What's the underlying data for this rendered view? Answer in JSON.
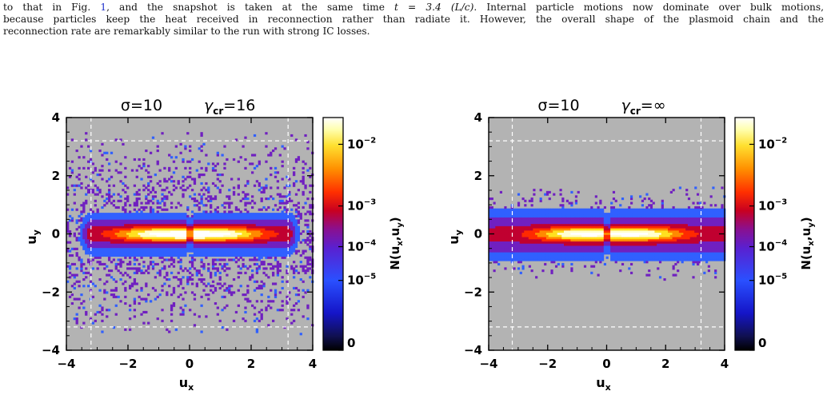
{
  "paragraph": {
    "line1_a": "to that in Fig. ",
    "line1_ref": "1",
    "line1_b": ", and the snapshot is taken at the same time ",
    "line1_math": "t = 3.4 (L/c)",
    "line1_c": ". Internal particle motions now dominate over bulk motions,",
    "line2": "because particles keep the heat received in reconnection rather than radiate it. However, the overall shape of the plasmoid chain and the",
    "line3": "reconnection rate are remarkably similar to the run with strong IC losses."
  },
  "figure": {
    "panels": [
      {
        "title_sigma": "σ=10",
        "title_gamma": "γ",
        "title_gamma_sub": "cr",
        "title_gamma_val": "=16",
        "xlabel": "u",
        "xlabel_sub": "x",
        "ylabel": "u",
        "ylabel_sub": "y",
        "xticks": [
          "−4",
          "−2",
          "0",
          "2",
          "4"
        ],
        "yticks": [
          "4",
          "2",
          "0",
          "−2",
          "−4"
        ],
        "colorbar_label": "N(u",
        "colorbar_label_sub1": "x",
        "colorbar_label_mid": ",u",
        "colorbar_label_sub2": "y",
        "colorbar_label_end": ")",
        "colorbar_ticks": [
          "10",
          "10",
          "10",
          "10",
          "0"
        ],
        "colorbar_tick_exps": [
          "−2",
          "−3",
          "−4",
          "−5",
          ""
        ]
      },
      {
        "title_sigma": "σ=10",
        "title_gamma": "γ",
        "title_gamma_sub": "cr",
        "title_gamma_val": "=∞",
        "xlabel": "u",
        "xlabel_sub": "x",
        "ylabel": "u",
        "ylabel_sub": "y",
        "xticks": [
          "−4",
          "−2",
          "0",
          "2",
          "4"
        ],
        "yticks": [
          "4",
          "2",
          "0",
          "−2",
          "−4"
        ],
        "colorbar_label": "N(u",
        "colorbar_label_sub1": "x",
        "colorbar_label_mid": ",u",
        "colorbar_label_sub2": "y",
        "colorbar_label_end": ")",
        "colorbar_ticks": [
          "10",
          "10",
          "10",
          "10",
          "0"
        ],
        "colorbar_tick_exps": [
          "−2",
          "−3",
          "−4",
          "−5",
          ""
        ]
      }
    ],
    "colors": {
      "background": "#b3b3b3",
      "dashed": "#ffffff",
      "colormap": [
        "#000000",
        "#1a0a60",
        "#1818d8",
        "#3060ff",
        "#7020c0",
        "#c00030",
        "#ff2a00",
        "#ff8a00",
        "#ffe020",
        "#ffffd0",
        "#ffffff"
      ]
    }
  },
  "chart_data": [
    {
      "type": "heatmap",
      "title": "σ=10  γcr=16",
      "xlabel": "ux",
      "ylabel": "uy",
      "xlim": [
        -4,
        4
      ],
      "ylim": [
        -4,
        4
      ],
      "xticks": [
        -4,
        -2,
        0,
        2,
        4
      ],
      "yticks": [
        -4,
        -2,
        0,
        2,
        4
      ],
      "colorbar": {
        "label": "N(ux,uy)",
        "ticks": [
          "10^-2",
          "10^-3",
          "10^-4",
          "10^-5",
          "0"
        ],
        "scale": "log"
      },
      "dashed_lines": {
        "x": [
          -3.2,
          3.2
        ],
        "y": [
          -3.2,
          3.2
        ]
      },
      "peaks": [
        {
          "x": -1.0,
          "y": 0.0
        },
        {
          "x": 1.0,
          "y": 0.0
        }
      ],
      "extent": {
        "core_half_width_x": 3.2,
        "core_half_height_y": 0.5,
        "scatter_half_height_y": 3.5
      }
    },
    {
      "type": "heatmap",
      "title": "σ=10  γcr=∞",
      "xlabel": "ux",
      "ylabel": "uy",
      "xlim": [
        -4,
        4
      ],
      "ylim": [
        -4,
        4
      ],
      "xticks": [
        -4,
        -2,
        0,
        2,
        4
      ],
      "yticks": [
        -4,
        -2,
        0,
        2,
        4
      ],
      "colorbar": {
        "label": "N(ux,uy)",
        "ticks": [
          "10^-2",
          "10^-3",
          "10^-4",
          "10^-5",
          "0"
        ],
        "scale": "log"
      },
      "dashed_lines": {
        "x": [
          -3.2,
          3.2
        ],
        "y": [
          -3.2,
          3.2
        ]
      },
      "peaks": [
        {
          "x": -1.0,
          "y": 0.0
        },
        {
          "x": 1.2,
          "y": 0.0
        }
      ],
      "extent": {
        "core_half_width_x": 4.0,
        "core_half_height_y": 0.6,
        "scatter_half_height_y": 1.6
      }
    }
  ]
}
